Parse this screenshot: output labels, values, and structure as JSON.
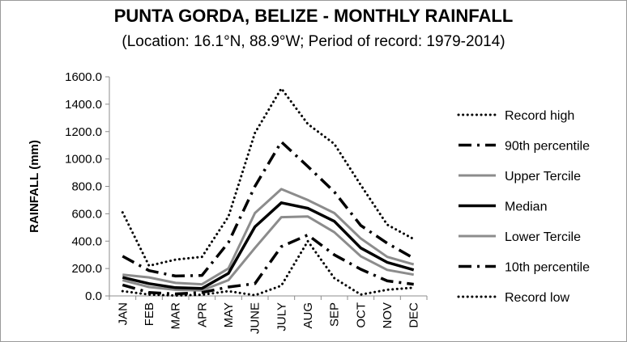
{
  "title": "PUNTA GORDA, BELIZE - MONTHLY RAINFALL",
  "subtitle": "(Location: 16.1°N, 88.9°W; Period of record: 1979-2014)",
  "chart_data": {
    "type": "line",
    "ylabel": "RAINFALL (mm)",
    "xlabel": "",
    "ylim": [
      0,
      1600
    ],
    "yticks": [
      "0.0",
      "200.0",
      "400.0",
      "600.0",
      "800.0",
      "1000.0",
      "1200.0",
      "1400.0",
      "1600.0"
    ],
    "categories": [
      "JAN",
      "FEB",
      "MAR",
      "APR",
      "MAY",
      "JUNE",
      "JULY",
      "AUG",
      "SEP",
      "OCT",
      "NOV",
      "DEC"
    ],
    "grid": false,
    "legend_position": "right",
    "series": [
      {
        "name": "Record high",
        "style": "dotted",
        "color": "#000000",
        "values": [
          610,
          220,
          265,
          285,
          580,
          1190,
          1515,
          1255,
          1110,
          810,
          520,
          415
        ]
      },
      {
        "name": "90th percentile",
        "style": "dashdot",
        "color": "#000000",
        "values": [
          290,
          185,
          145,
          150,
          390,
          800,
          1125,
          945,
          760,
          515,
          385,
          275
        ]
      },
      {
        "name": "Upper Tercile",
        "style": "solid",
        "color": "#8c8c8c",
        "values": [
          155,
          135,
          95,
          85,
          200,
          605,
          780,
          700,
          605,
          420,
          285,
          230
        ]
      },
      {
        "name": "Median",
        "style": "solid-thick",
        "color": "#000000",
        "values": [
          135,
          90,
          60,
          55,
          165,
          505,
          680,
          640,
          545,
          350,
          245,
          190
        ]
      },
      {
        "name": "Lower Tercile",
        "style": "solid",
        "color": "#8c8c8c",
        "values": [
          115,
          65,
          45,
          40,
          115,
          350,
          575,
          580,
          465,
          290,
          190,
          155
        ]
      },
      {
        "name": "10th percentile",
        "style": "dashdot",
        "color": "#000000",
        "values": [
          80,
          25,
          15,
          25,
          65,
          90,
          360,
          445,
          300,
          195,
          110,
          85
        ]
      },
      {
        "name": "Record low",
        "style": "dotted",
        "color": "#000000",
        "values": [
          35,
          10,
          3,
          8,
          35,
          5,
          75,
          400,
          130,
          10,
          45,
          60
        ]
      }
    ]
  }
}
